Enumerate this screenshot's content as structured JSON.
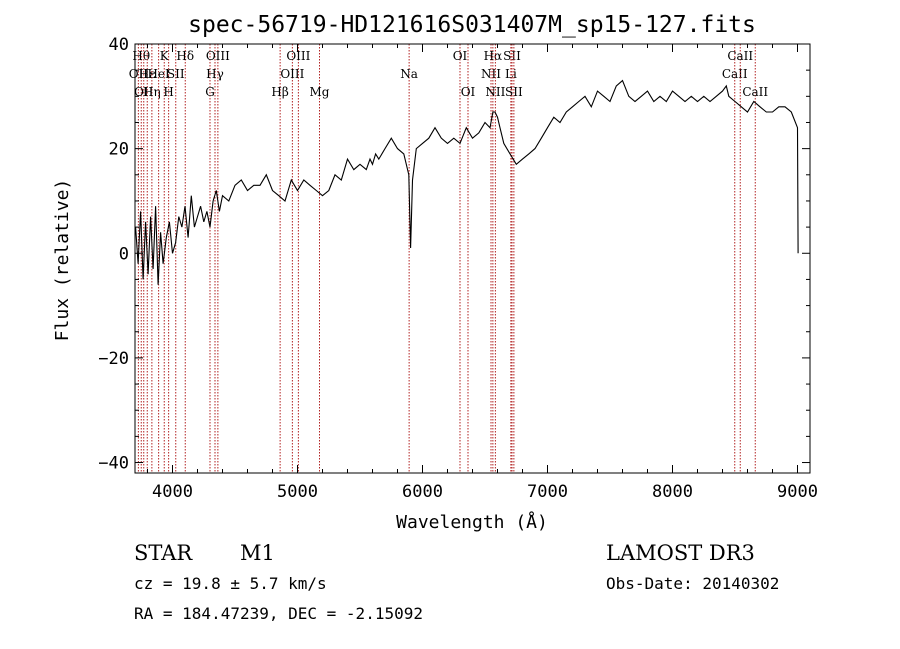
{
  "chart_data": {
    "type": "line",
    "title": "spec-56719-HD121616S031407M_sp15-127.fits",
    "xlabel": "Wavelength (Å)",
    "ylabel": "Flux (relative)",
    "xlim": [
      3700,
      9100
    ],
    "ylim": [
      -42,
      40
    ],
    "xticks": [
      4000,
      5000,
      6000,
      7000,
      8000,
      9000
    ],
    "yticks": [
      -40,
      -20,
      0,
      20,
      40
    ],
    "grid": false,
    "legend": "none",
    "line_color": "#000000",
    "marker_color": "#b22222",
    "series": [
      {
        "x": [
          3705,
          3725,
          3745,
          3765,
          3785,
          3805,
          3825,
          3845,
          3865,
          3885,
          3905,
          3925,
          3950,
          3975,
          4000,
          4025,
          4050,
          4075,
          4100,
          4125,
          4150,
          4175,
          4200,
          4225,
          4250,
          4275,
          4300,
          4325,
          4350,
          4375,
          4400,
          4450,
          4500,
          4550,
          4600,
          4650,
          4700,
          4750,
          4800,
          4850,
          4900,
          4950,
          5000,
          5050,
          5100,
          5150,
          5200,
          5250,
          5300,
          5350,
          5400,
          5450,
          5500,
          5550,
          5580,
          5600,
          5625,
          5650,
          5700,
          5750,
          5800,
          5850,
          5890,
          5905,
          5920,
          5950,
          6000,
          6050,
          6100,
          6150,
          6200,
          6250,
          6300,
          6350,
          6400,
          6450,
          6500,
          6540,
          6563,
          6580,
          6600,
          6620,
          6650,
          6700,
          6750,
          6800,
          6850,
          6900,
          6950,
          7000,
          7050,
          7100,
          7150,
          7200,
          7250,
          7300,
          7350,
          7400,
          7450,
          7500,
          7550,
          7600,
          7650,
          7700,
          7750,
          7800,
          7850,
          7900,
          7950,
          8000,
          8050,
          8100,
          8150,
          8200,
          8250,
          8300,
          8350,
          8400,
          8430,
          8450,
          8500,
          8550,
          8600,
          8650,
          8700,
          8750,
          8800,
          8850,
          8900,
          8950,
          9000,
          9005
        ],
        "y": [
          5,
          -2,
          8,
          -5,
          6,
          -4,
          7,
          -3,
          9,
          -6,
          4,
          -2,
          3,
          6,
          0,
          2,
          7,
          5,
          9,
          3,
          11,
          5,
          7,
          9,
          6,
          8,
          5,
          10,
          12,
          8,
          11,
          10,
          13,
          14,
          12,
          13,
          13,
          15,
          12,
          11,
          10,
          14,
          12,
          14,
          13,
          12,
          11,
          12,
          15,
          14,
          18,
          16,
          17,
          16,
          18,
          17,
          19,
          18,
          20,
          22,
          20,
          19,
          15,
          1,
          14,
          20,
          21,
          22,
          24,
          22,
          21,
          22,
          21,
          24,
          22,
          23,
          25,
          24,
          27,
          27,
          26,
          24,
          21,
          19,
          17,
          18,
          19,
          20,
          22,
          24,
          26,
          25,
          27,
          28,
          29,
          30,
          28,
          31,
          30,
          29,
          32,
          33,
          30,
          29,
          30,
          31,
          29,
          30,
          29,
          31,
          30,
          29,
          30,
          29,
          30,
          29,
          30,
          31,
          32,
          30,
          29,
          28,
          27,
          29,
          28,
          27,
          27,
          28,
          28,
          27,
          24,
          0
        ]
      }
    ],
    "line_markers": [
      {
        "wl": 3727,
        "label": "OII",
        "row": 1
      },
      {
        "wl": 3750,
        "label": "Hθ",
        "row": 0
      },
      {
        "wl": 3770,
        "label": "OII",
        "row": 2
      },
      {
        "wl": 3798,
        "label": "Hε",
        "row": 1
      },
      {
        "wl": 3835,
        "label": "Hη",
        "row": 2
      },
      {
        "wl": 3889,
        "label": "HeI",
        "row": 1
      },
      {
        "wl": 3934,
        "label": "K",
        "row": 0
      },
      {
        "wl": 3969,
        "label": "H",
        "row": 2
      },
      {
        "wl": 4026,
        "label": "SII",
        "row": 1
      },
      {
        "wl": 4102,
        "label": "Hδ",
        "row": 0
      },
      {
        "wl": 4300,
        "label": "G",
        "row": 2
      },
      {
        "wl": 4340,
        "label": "Hγ",
        "row": 1
      },
      {
        "wl": 4363,
        "label": "OIII",
        "row": 0
      },
      {
        "wl": 4861,
        "label": "Hβ",
        "row": 2
      },
      {
        "wl": 4959,
        "label": "OIII",
        "row": 1
      },
      {
        "wl": 5007,
        "label": "OIII",
        "row": 0
      },
      {
        "wl": 5176,
        "label": "Mg",
        "row": 2
      },
      {
        "wl": 5893,
        "label": "Na",
        "row": 1
      },
      {
        "wl": 6300,
        "label": "OI",
        "row": 0
      },
      {
        "wl": 6364,
        "label": "OI",
        "row": 2
      },
      {
        "wl": 6548,
        "label": "NII",
        "row": 1
      },
      {
        "wl": 6563,
        "label": "Hα",
        "row": 0
      },
      {
        "wl": 6583,
        "label": "NII",
        "row": 2
      },
      {
        "wl": 6707,
        "label": "Li",
        "row": 1
      },
      {
        "wl": 6716,
        "label": "SII",
        "row": 0
      },
      {
        "wl": 6731,
        "label": "SII",
        "row": 2
      },
      {
        "wl": 8498,
        "label": "CaII",
        "row": 1
      },
      {
        "wl": 8542,
        "label": "CaII",
        "row": 0
      },
      {
        "wl": 8662,
        "label": "CaII",
        "row": 2
      }
    ]
  },
  "info": {
    "obj_class": "STAR",
    "subclass": "M1",
    "survey": "LAMOST DR3",
    "cz": "cz = 19.8 ± 5.7 km/s",
    "obs_date": "Obs-Date: 20140302",
    "radec": "RA = 184.47239, DEC =  -2.15092"
  }
}
